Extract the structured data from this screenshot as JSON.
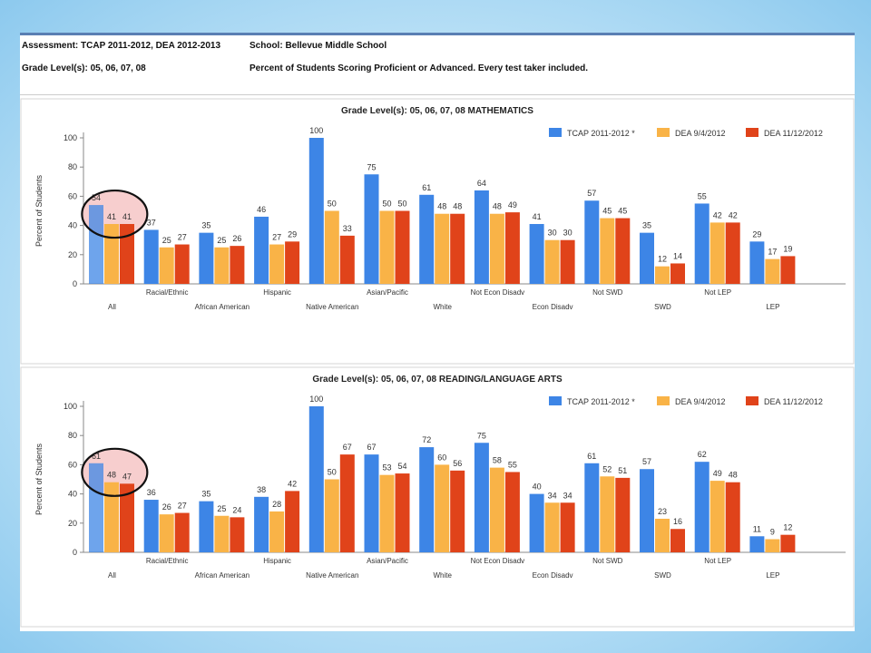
{
  "header": {
    "assessment": "Assessment: TCAP 2011-2012, DEA 2012-2013",
    "school": "School: Bellevue Middle School",
    "grade_levels": "Grade Level(s): 05, 06, 07, 08",
    "description": "Percent of Students Scoring Proficient or Advanced.  Every test taker included."
  },
  "colors": {
    "tcap": "#3d85e6",
    "dea_sep": "#f9b347",
    "dea_nov": "#e0431a",
    "highlight": "#f6c9c9",
    "circle": "#111111"
  },
  "chart_data": [
    {
      "type": "bar",
      "title": "Grade Level(s): 05, 06, 07, 08 MATHEMATICS",
      "ylabel": "Percent of Students",
      "ylim": [
        0,
        100
      ],
      "yticks": [
        "0",
        "20",
        "40",
        "60",
        "80",
        "100"
      ],
      "grid": false,
      "legend_position": "top-right",
      "categories": [
        "All",
        "Racial/Ethnic",
        "African American",
        "Hispanic",
        "Native American",
        "Asian/Pacific",
        "White",
        "Not Econ Disadv",
        "Econ Disadv",
        "Not SWD",
        "SWD",
        "Not LEP",
        "LEP"
      ],
      "series": [
        {
          "name": "TCAP 2011-2012 *",
          "values": [
            54,
            37,
            35,
            46,
            100,
            75,
            61,
            64,
            41,
            57,
            35,
            55,
            29
          ]
        },
        {
          "name": "DEA 9/4/2012",
          "values": [
            41,
            25,
            25,
            27,
            50,
            50,
            48,
            48,
            30,
            45,
            12,
            42,
            17
          ]
        },
        {
          "name": "DEA 11/12/2012",
          "values": [
            41,
            27,
            26,
            29,
            33,
            50,
            48,
            49,
            30,
            45,
            14,
            42,
            19
          ]
        }
      ],
      "highlighted_category": "All"
    },
    {
      "type": "bar",
      "title": "Grade Level(s): 05, 06, 07, 08 READING/LANGUAGE ARTS",
      "ylabel": "Percent of Students",
      "ylim": [
        0,
        100
      ],
      "yticks": [
        "0",
        "20",
        "40",
        "60",
        "80",
        "100"
      ],
      "grid": false,
      "legend_position": "top-right",
      "categories": [
        "All",
        "Racial/Ethnic",
        "African American",
        "Hispanic",
        "Native American",
        "Asian/Pacific",
        "White",
        "Not Econ Disadv",
        "Econ Disadv",
        "Not SWD",
        "SWD",
        "Not LEP",
        "LEP"
      ],
      "series": [
        {
          "name": "TCAP 2011-2012 *",
          "values": [
            61,
            36,
            35,
            38,
            100,
            67,
            72,
            75,
            40,
            61,
            57,
            62,
            11
          ]
        },
        {
          "name": "DEA 9/4/2012",
          "values": [
            48,
            26,
            25,
            28,
            50,
            53,
            60,
            58,
            34,
            52,
            23,
            49,
            9
          ]
        },
        {
          "name": "DEA 11/12/2012",
          "values": [
            47,
            27,
            24,
            42,
            67,
            54,
            56,
            55,
            34,
            51,
            16,
            48,
            12
          ]
        }
      ],
      "highlighted_category": "All"
    }
  ]
}
